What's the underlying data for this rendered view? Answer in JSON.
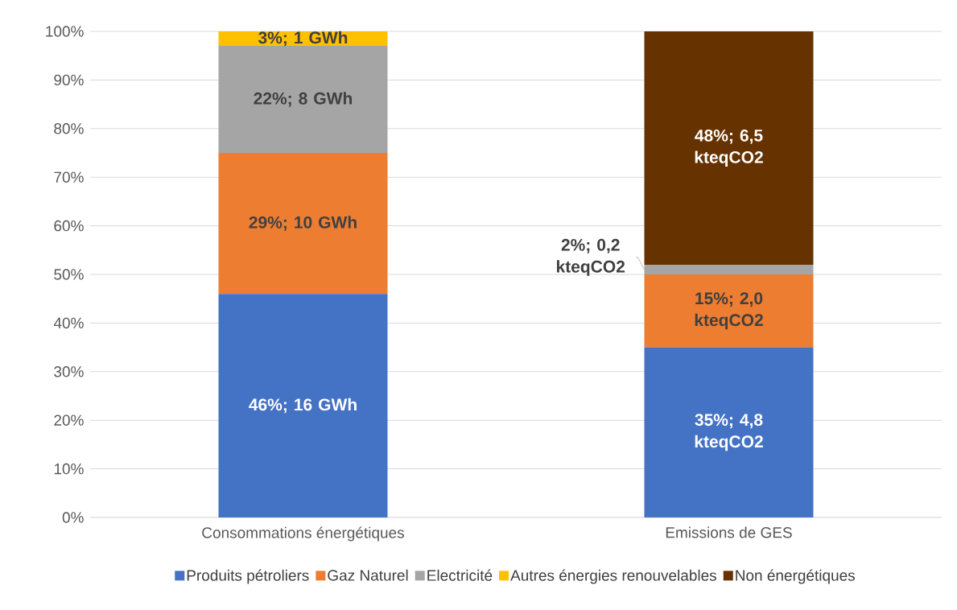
{
  "chart_data": {
    "type": "bar",
    "stacked": true,
    "categories": [
      "Consommations énergétiques",
      "Emissions de GES"
    ],
    "series": [
      {
        "name": "Produits pétroliers",
        "color": "#4472c4",
        "values": [
          46,
          35
        ],
        "value_labels": [
          "46%;  16 GWh",
          "35%;  4,8 kteqCO2"
        ]
      },
      {
        "name": "Gaz Naturel",
        "color": "#ed7d31",
        "values": [
          29,
          15
        ],
        "value_labels": [
          "29%;  10 GWh",
          "15%;  2,0 kteqCO2"
        ]
      },
      {
        "name": "Electricité",
        "color": "#a5a5a5",
        "values": [
          22,
          2
        ],
        "value_labels": [
          "22%;  8 GWh",
          "2%;  0,2 kteqCO2"
        ]
      },
      {
        "name": "Autres énergies renouvelables",
        "color": "#ffc000",
        "values": [
          3,
          null
        ],
        "value_labels": [
          "3%;  1 GWh",
          null
        ]
      },
      {
        "name": "Non énergétiques",
        "color": "#663300",
        "values": [
          null,
          48
        ],
        "value_labels": [
          null,
          "48%;  6,5 kteqCO2"
        ]
      }
    ],
    "ylim": [
      0,
      100
    ],
    "yticks": [
      {
        "value": 0,
        "label": "0%"
      },
      {
        "value": 10,
        "label": "10%"
      },
      {
        "value": 20,
        "label": "20%"
      },
      {
        "value": 30,
        "label": "30%"
      },
      {
        "value": 40,
        "label": "40%"
      },
      {
        "value": 50,
        "label": "50%"
      },
      {
        "value": 60,
        "label": "60%"
      },
      {
        "value": 70,
        "label": "70%"
      },
      {
        "value": 80,
        "label": "80%"
      },
      {
        "value": 90,
        "label": "90%"
      },
      {
        "value": 100,
        "label": "100%"
      }
    ],
    "grid": "y",
    "legend": "bottom"
  }
}
